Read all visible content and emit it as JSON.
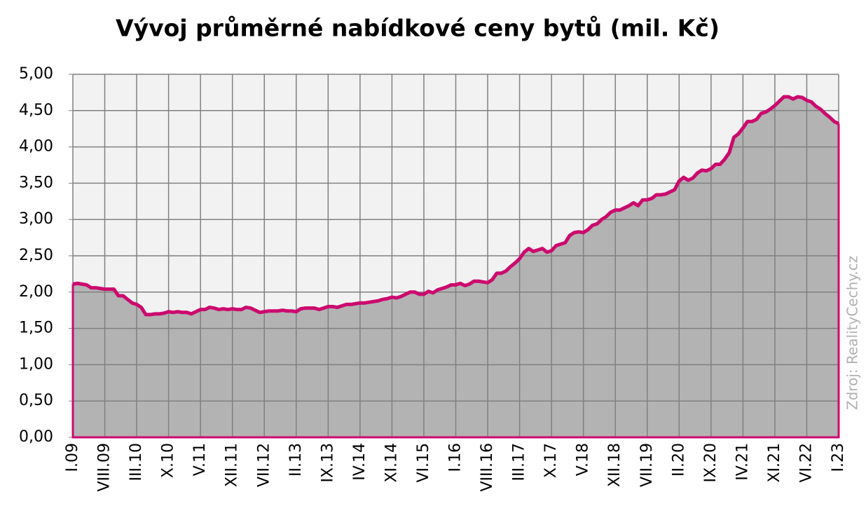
{
  "chart_data": {
    "type": "area",
    "title": "Vývoj průměrné nabídkové ceny bytů (mil. Kč)",
    "source": "Zdroj: RealityCechy.cz",
    "categories": [
      "I.09",
      null,
      null,
      null,
      null,
      null,
      null,
      "VIII.09",
      null,
      null,
      null,
      null,
      null,
      null,
      "III.10",
      null,
      null,
      null,
      null,
      null,
      null,
      "X.10",
      null,
      null,
      null,
      null,
      null,
      null,
      "V.11",
      null,
      null,
      null,
      null,
      null,
      null,
      "XII.11",
      null,
      null,
      null,
      null,
      null,
      null,
      "VII.12",
      null,
      null,
      null,
      null,
      null,
      null,
      "II.13",
      null,
      null,
      null,
      null,
      null,
      null,
      "IX.13",
      null,
      null,
      null,
      null,
      null,
      null,
      "IV.14",
      null,
      null,
      null,
      null,
      null,
      null,
      "XI.14",
      null,
      null,
      null,
      null,
      null,
      null,
      "VI.15",
      null,
      null,
      null,
      null,
      null,
      null,
      "I.16",
      null,
      null,
      null,
      null,
      null,
      null,
      "VIII.16",
      null,
      null,
      null,
      null,
      null,
      null,
      "III.17",
      null,
      null,
      null,
      null,
      null,
      null,
      "X.17",
      null,
      null,
      null,
      null,
      null,
      null,
      "V.18",
      null,
      null,
      null,
      null,
      null,
      null,
      "XII.18",
      null,
      null,
      null,
      null,
      null,
      null,
      "VII.19",
      null,
      null,
      null,
      null,
      null,
      null,
      "II.20",
      null,
      null,
      null,
      null,
      null,
      null,
      "IX.20",
      null,
      null,
      null,
      null,
      null,
      null,
      "IV.21",
      null,
      null,
      null,
      null,
      null,
      null,
      "XI.21",
      null,
      null,
      null,
      null,
      null,
      null,
      "VI.22",
      null,
      null,
      null,
      null,
      null,
      null,
      "I.23"
    ],
    "values": [
      2.11,
      2.12,
      2.11,
      2.1,
      2.06,
      2.06,
      2.05,
      2.04,
      2.04,
      2.04,
      1.95,
      1.95,
      1.9,
      1.85,
      1.83,
      1.79,
      1.69,
      1.69,
      1.7,
      1.7,
      1.71,
      1.73,
      1.72,
      1.73,
      1.72,
      1.72,
      1.7,
      1.73,
      1.76,
      1.76,
      1.79,
      1.78,
      1.76,
      1.77,
      1.76,
      1.77,
      1.76,
      1.76,
      1.79,
      1.78,
      1.75,
      1.72,
      1.73,
      1.74,
      1.74,
      1.74,
      1.75,
      1.74,
      1.74,
      1.73,
      1.77,
      1.78,
      1.78,
      1.78,
      1.76,
      1.78,
      1.8,
      1.8,
      1.79,
      1.81,
      1.83,
      1.83,
      1.84,
      1.85,
      1.85,
      1.86,
      1.87,
      1.88,
      1.9,
      1.91,
      1.93,
      1.92,
      1.94,
      1.97,
      2.0,
      2.0,
      1.97,
      1.97,
      2.01,
      1.99,
      2.03,
      2.05,
      2.07,
      2.1,
      2.1,
      2.12,
      2.09,
      2.11,
      2.15,
      2.15,
      2.14,
      2.13,
      2.17,
      2.26,
      2.26,
      2.29,
      2.35,
      2.4,
      2.46,
      2.55,
      2.6,
      2.56,
      2.58,
      2.6,
      2.55,
      2.57,
      2.64,
      2.66,
      2.68,
      2.78,
      2.82,
      2.83,
      2.82,
      2.86,
      2.92,
      2.94,
      3.0,
      3.04,
      3.1,
      3.13,
      3.13,
      3.16,
      3.19,
      3.23,
      3.19,
      3.27,
      3.27,
      3.29,
      3.34,
      3.34,
      3.35,
      3.38,
      3.41,
      3.53,
      3.58,
      3.54,
      3.57,
      3.64,
      3.68,
      3.67,
      3.7,
      3.76,
      3.76,
      3.83,
      3.92,
      4.13,
      4.18,
      4.26,
      4.35,
      4.35,
      4.38,
      4.46,
      4.48,
      4.52,
      4.57,
      4.63,
      4.69,
      4.69,
      4.66,
      4.69,
      4.68,
      4.64,
      4.62,
      4.56,
      4.52,
      4.46,
      4.41,
      4.35,
      4.32
    ],
    "color": "#cc0a6e",
    "fill": "#b3b3b3",
    "ylim": [
      0,
      5
    ],
    "yticks": [
      {
        "value": 0,
        "label": "0,00"
      },
      {
        "value": 0.5,
        "label": "0,50"
      },
      {
        "value": 1,
        "label": "1,00"
      },
      {
        "value": 1.5,
        "label": "1,50"
      },
      {
        "value": 2,
        "label": "2,00"
      },
      {
        "value": 2.5,
        "label": "2,50"
      },
      {
        "value": 3,
        "label": "3,00"
      },
      {
        "value": 3.5,
        "label": "3,50"
      },
      {
        "value": 4,
        "label": "4,00"
      },
      {
        "value": 4.5,
        "label": "4,50"
      },
      {
        "value": 5,
        "label": "5,00"
      }
    ],
    "grid": true
  }
}
